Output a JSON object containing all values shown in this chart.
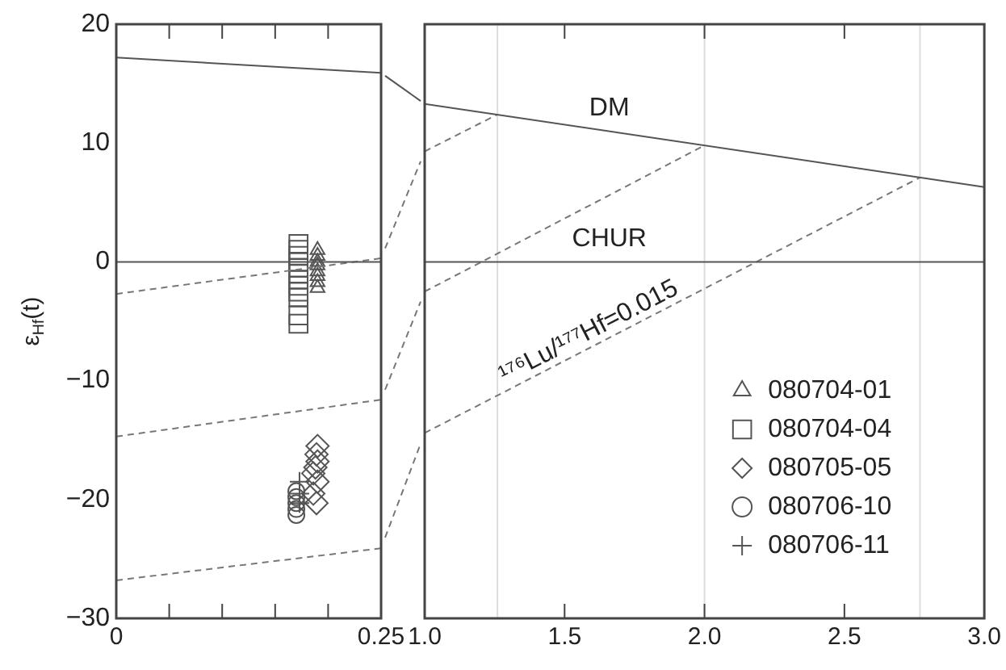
{
  "chart_data": [
    {
      "type": "scatter",
      "ylabel": "ε$_{Hf}$(t)",
      "xlim": [
        0,
        0.25
      ],
      "xticks": [
        0,
        {
          "value": 0.05,
          "label": null
        },
        {
          "value": 0.1,
          "label": null
        },
        {
          "value": 0.15,
          "label": null
        },
        {
          "value": 0.2,
          "label": null
        },
        0.25
      ],
      "ylim": [
        -30,
        20
      ],
      "yticks": [
        -30,
        -20,
        -10,
        0,
        10,
        20
      ],
      "grid": false,
      "legend": "bottom right",
      "series": [
        {
          "type": "line",
          "x": [
            0,
            0.25
          ],
          "values": [
            17.2,
            15.9
          ],
          "color": "#555555",
          "line_style": "solid",
          "marker": "none"
        },
        {
          "type": "line",
          "x": [
            0,
            0.25
          ],
          "values": [
            0,
            0
          ],
          "color": "#555555",
          "line_style": "solid",
          "marker": "none"
        },
        {
          "type": "line",
          "x": [
            0,
            0.25
          ],
          "values": [
            -2.7,
            0.3
          ],
          "color": "#777777",
          "line_style": "dashed",
          "marker": "none"
        },
        {
          "type": "line",
          "x": [
            0,
            0.25
          ],
          "values": [
            -14.7,
            -11.6
          ],
          "color": "#777777",
          "line_style": "dashed",
          "marker": "none"
        },
        {
          "type": "line",
          "x": [
            0,
            0.25
          ],
          "values": [
            -26.8,
            -24.1
          ],
          "color": "#777777",
          "line_style": "dashed",
          "marker": "none"
        },
        {
          "name": "080704-01",
          "marker": "triangle",
          "color": "#555555",
          "x": [
            0.19,
            0.19,
            0.19,
            0.19,
            0.19,
            0.19,
            0.19,
            0.19
          ],
          "values": [
            1.0,
            0.5,
            0,
            -0.3,
            -0.8,
            -1.2,
            -1.7,
            -2.2
          ]
        },
        {
          "name": "080704-04",
          "marker": "square",
          "color": "#555555",
          "x": [
            0.172,
            0.172,
            0.172,
            0.172,
            0.172,
            0.172,
            0.172,
            0.172,
            0.172,
            0.172,
            0.172,
            0.172
          ],
          "values": [
            1.5,
            1.0,
            0.5,
            0,
            -0.5,
            -1,
            -1.5,
            -2,
            -2.5,
            -3,
            -4.5,
            -5.2
          ]
        },
        {
          "name": "080705-05",
          "marker": "diamond",
          "color": "#555555",
          "x": [
            0.19,
            0.189,
            0.19,
            0.188,
            0.186,
            0.19,
            0.186,
            0.189
          ],
          "values": [
            -15.5,
            -16.2,
            -16.8,
            -17.3,
            -17.8,
            -18.5,
            -19.5,
            -20.3
          ]
        },
        {
          "name": "080706-10",
          "marker": "circle",
          "color": "#555555",
          "x": [
            0.17,
            0.17,
            0.17,
            0.17,
            0.17
          ],
          "values": [
            -19.3,
            -19.8,
            -20.3,
            -20.8,
            -21.3
          ]
        },
        {
          "name": "080706-11",
          "marker": "cross",
          "color": "#555555",
          "x": [
            0.173,
            0.173,
            0.173
          ],
          "values": [
            -18.5,
            -19.5,
            -20.3
          ]
        }
      ]
    },
    {
      "type": "line",
      "xlim": [
        1,
        3
      ],
      "xticks": [
        {
          "value": 1,
          "label": "1.0"
        },
        {
          "value": 1.5,
          "label": "1.5"
        },
        {
          "value": 2,
          "label": "2.0"
        },
        {
          "value": 2.5,
          "label": "2.5"
        },
        {
          "value": 3,
          "label": "3.0"
        }
      ],
      "ylim": [
        -30,
        20
      ],
      "tick_labels": "x",
      "grid": false,
      "ref_lines": [
        {
          "axis": "x",
          "value": 1.26,
          "color": "#dddddd"
        },
        {
          "axis": "x",
          "value": 2.0,
          "color": "#dddddd"
        },
        {
          "axis": "x",
          "value": 2.77,
          "color": "#dddddd"
        }
      ],
      "annotations": [
        {
          "text": "¹⁷⁶Lu/¹⁷⁷Hf=0.015",
          "x": 1.61,
          "y": -7.0
        }
      ],
      "series": [
        {
          "name": "DM",
          "x": [
            1,
            3
          ],
          "values": [
            13.3,
            6.3
          ],
          "color": "#555555",
          "line_style": "solid"
        },
        {
          "name": "CHUR",
          "x": [
            1,
            3
          ],
          "values": [
            0,
            0
          ],
          "color": "#555555",
          "line_style": "solid"
        },
        {
          "x": [
            1,
            1.26
          ],
          "values": [
            9.3,
            12.4
          ],
          "color": "#777777",
          "line_style": "dashed"
        },
        {
          "x": [
            1,
            2.0
          ],
          "values": [
            -2.5,
            9.8
          ],
          "color": "#777777",
          "line_style": "dashed"
        },
        {
          "x": [
            1,
            2.77
          ],
          "values": [
            -14.4,
            7.1
          ],
          "color": "#777777",
          "line_style": "dashed"
        }
      ]
    }
  ]
}
